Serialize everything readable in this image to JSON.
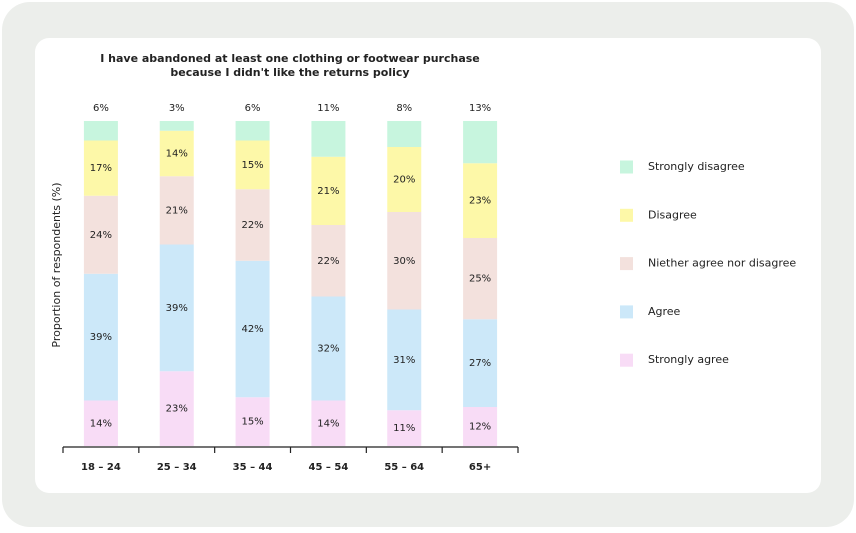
{
  "chart_data": {
    "type": "stacked-bar",
    "title": [
      "I have abandoned at least one clothing or footwear purchase",
      "because I didn't like the returns policy"
    ],
    "y_label": "Proportion of respondents (%)",
    "categories": [
      "18 – 24",
      "25 – 34",
      "35 – 44",
      "45 – 54",
      "55 – 64",
      "65+"
    ],
    "ylim": [
      0,
      100
    ],
    "series": [
      {
        "name": "Strongly agree",
        "color": "#f8dcf6",
        "values": [
          14,
          23,
          15,
          14,
          11,
          12
        ],
        "value_labels": [
          "14%",
          "23%",
          "15%",
          "14%",
          "11%",
          "12%"
        ]
      },
      {
        "name": "Agree",
        "color": "#cce8f9",
        "values": [
          39,
          39,
          42,
          32,
          31,
          27
        ],
        "value_labels": [
          "39%",
          "39%",
          "42%",
          "32%",
          "31%",
          "27%"
        ]
      },
      {
        "name": "Niether agree nor disagree",
        "color": "#f3e1dd",
        "values": [
          24,
          21,
          22,
          22,
          30,
          25
        ],
        "value_labels": [
          "24%",
          "21%",
          "22%",
          "22%",
          "30%",
          "25%"
        ]
      },
      {
        "name": "Disagree",
        "color": "#fdf8a8",
        "values": [
          17,
          14,
          15,
          21,
          20,
          23
        ],
        "value_labels": [
          "17%",
          "14%",
          "15%",
          "21%",
          "20%",
          "23%"
        ]
      },
      {
        "name": "Strongly disagree",
        "color": "#c7f5de",
        "values": [
          6,
          3,
          6,
          11,
          8,
          13
        ],
        "value_labels": [
          "6%",
          "3%",
          "6%",
          "11%",
          "8%",
          "13%"
        ]
      }
    ]
  }
}
